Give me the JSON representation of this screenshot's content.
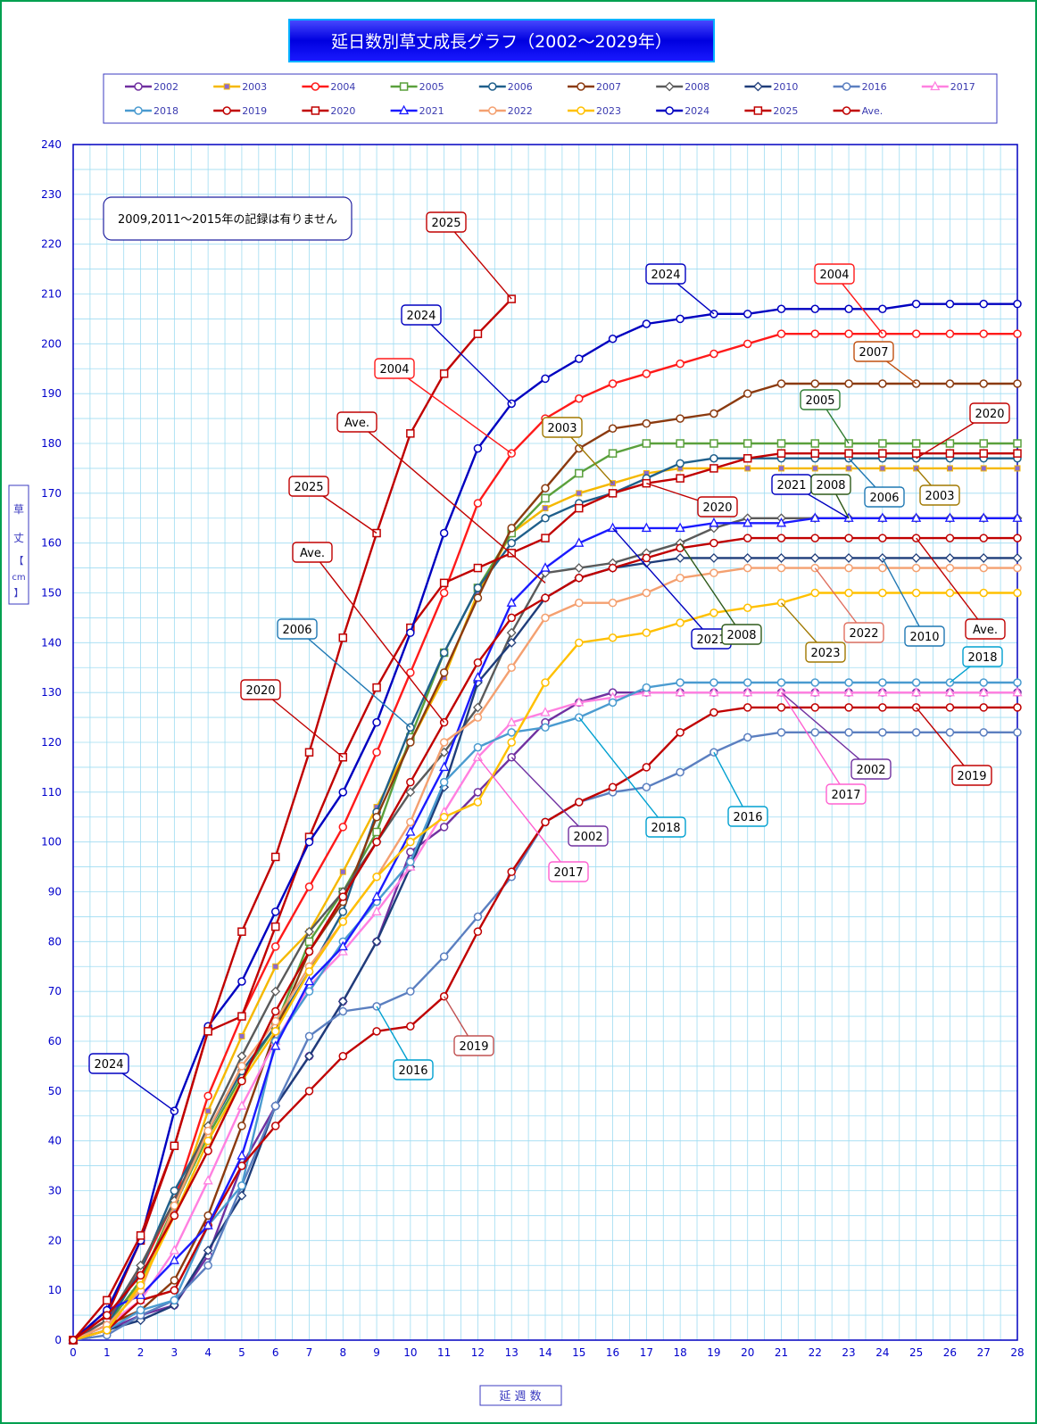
{
  "chart_data": {
    "type": "line",
    "title": "延日数別草丈成長グラフ（2002～2029年）",
    "note": "2009,2011～2015年の記録は有りません",
    "xlabel": "延 週 数",
    "ylabel": "草 丈 【cm】",
    "xlim": [
      0,
      28
    ],
    "ylim": [
      0,
      240
    ],
    "x_ticks": [
      0,
      1,
      2,
      3,
      4,
      5,
      6,
      7,
      8,
      9,
      10,
      11,
      12,
      13,
      14,
      15,
      16,
      17,
      18,
      19,
      20,
      21,
      22,
      23,
      24,
      25,
      26,
      27,
      28
    ],
    "y_ticks": [
      0,
      10,
      20,
      30,
      40,
      50,
      60,
      70,
      80,
      90,
      100,
      110,
      120,
      130,
      140,
      150,
      160,
      170,
      180,
      190,
      200,
      210,
      220,
      230,
      240
    ],
    "grid": true,
    "legend_position": "top",
    "series": [
      {
        "name": "2002",
        "color": "#7030a0",
        "marker": "circle-open",
        "values": [
          0,
          2,
          5,
          7,
          17,
          35,
          47,
          57,
          68,
          80,
          98,
          103,
          110,
          117,
          124,
          128,
          130,
          130,
          130,
          130,
          130,
          130,
          130,
          130,
          130,
          130,
          130,
          130,
          130
        ]
      },
      {
        "name": "2003",
        "color": "#f5b800",
        "marker": "square-filled",
        "values": [
          0,
          4,
          11,
          26,
          46,
          61,
          75,
          82,
          94,
          107,
          120,
          133,
          150,
          162,
          167,
          170,
          172,
          174,
          175,
          175,
          175,
          175,
          175,
          175,
          175,
          175,
          175,
          175,
          175
        ]
      },
      {
        "name": "2004",
        "color": "#ff1a1a",
        "marker": "circle-open",
        "values": [
          0,
          4,
          14,
          28,
          49,
          65,
          79,
          91,
          103,
          118,
          134,
          150,
          168,
          178,
          185,
          189,
          192,
          194,
          196,
          198,
          200,
          202,
          202,
          202,
          202,
          202,
          202,
          202,
          202
        ]
      },
      {
        "name": "2005",
        "color": "#5aa03c",
        "marker": "square-open",
        "values": [
          0,
          3,
          12,
          27,
          41,
          53,
          63,
          80,
          90,
          102,
          121,
          138,
          151,
          162,
          169,
          174,
          178,
          180,
          180,
          180,
          180,
          180,
          180,
          180,
          180,
          180,
          180,
          180,
          180
        ]
      },
      {
        "name": "2006",
        "color": "#1f5f8b",
        "marker": "circle-open",
        "values": [
          0,
          3,
          14,
          30,
          42,
          54,
          63,
          74,
          86,
          106,
          123,
          138,
          151,
          160,
          165,
          168,
          170,
          173,
          176,
          177,
          177,
          177,
          177,
          177,
          177,
          177,
          177,
          177,
          177
        ]
      },
      {
        "name": "2007",
        "color": "#8b3a0f",
        "marker": "circle-open",
        "values": [
          0,
          3,
          6,
          12,
          25,
          43,
          62,
          78,
          88,
          105,
          120,
          134,
          149,
          163,
          171,
          179,
          183,
          184,
          185,
          186,
          190,
          192,
          192,
          192,
          192,
          192,
          192,
          192,
          192
        ]
      },
      {
        "name": "2008",
        "color": "#5a5a5a",
        "marker": "diamond-open",
        "values": [
          0,
          4,
          15,
          28,
          43,
          57,
          70,
          82,
          90,
          100,
          110,
          118,
          127,
          142,
          154,
          155,
          156,
          158,
          160,
          163,
          165,
          165,
          165,
          165,
          165,
          165,
          165,
          165,
          165
        ]
      },
      {
        "name": "2010",
        "color": "#1f3d7a",
        "marker": "diamond-open",
        "values": [
          0,
          2,
          4,
          7,
          18,
          29,
          47,
          57,
          68,
          80,
          95,
          111,
          132,
          140,
          149,
          153,
          155,
          156,
          157,
          157,
          157,
          157,
          157,
          157,
          157,
          157,
          157,
          157,
          157
        ]
      },
      {
        "name": "2016",
        "color": "#5b7fc0",
        "marker": "circle-open",
        "values": [
          0,
          1,
          5,
          8,
          15,
          31,
          47,
          61,
          66,
          67,
          70,
          77,
          85,
          93,
          104,
          108,
          110,
          111,
          114,
          118,
          121,
          122,
          122,
          122,
          122,
          122,
          122,
          122,
          122
        ]
      },
      {
        "name": "2017",
        "color": "#ff80e0",
        "marker": "triangle-open",
        "values": [
          0,
          3,
          8,
          18,
          32,
          47,
          60,
          71,
          78,
          86,
          95,
          106,
          117,
          124,
          126,
          128,
          129,
          130,
          130,
          130,
          130,
          130,
          130,
          130,
          130,
          130,
          130,
          130,
          130
        ]
      },
      {
        "name": "2018",
        "color": "#4a9bd0",
        "marker": "circle-open",
        "values": [
          0,
          2,
          6,
          8,
          23,
          31,
          60,
          70,
          80,
          88,
          96,
          112,
          119,
          122,
          123,
          125,
          128,
          131,
          132,
          132,
          132,
          132,
          132,
          132,
          132,
          132,
          132,
          132,
          132
        ]
      },
      {
        "name": "2019",
        "color": "#c00000",
        "marker": "circle-open",
        "values": [
          0,
          2,
          8,
          10,
          23,
          35,
          43,
          50,
          57,
          62,
          63,
          69,
          82,
          94,
          104,
          108,
          111,
          115,
          122,
          126,
          127,
          127,
          127,
          127,
          127,
          127,
          127,
          127,
          127
        ]
      },
      {
        "name": "2020",
        "color": "#c00000",
        "marker": "square-open",
        "values": [
          0,
          5,
          20,
          39,
          62,
          65,
          83,
          101,
          117,
          131,
          143,
          152,
          155,
          158,
          161,
          167,
          170,
          172,
          173,
          175,
          177,
          178,
          178,
          178,
          178,
          178,
          178,
          178,
          178
        ]
      },
      {
        "name": "2021",
        "color": "#1a1aff",
        "marker": "triangle-open",
        "values": [
          0,
          6,
          9,
          16,
          23,
          37,
          59,
          72,
          79,
          89,
          102,
          115,
          133,
          148,
          155,
          160,
          163,
          163,
          163,
          164,
          164,
          164,
          165,
          165,
          165,
          165,
          165,
          165,
          165
        ]
      },
      {
        "name": "2022",
        "color": "#f4a070",
        "marker": "circle-open",
        "values": [
          0,
          3,
          10,
          27,
          42,
          55,
          64,
          75,
          84,
          93,
          104,
          120,
          125,
          135,
          145,
          148,
          148,
          150,
          153,
          154,
          155,
          155,
          155,
          155,
          155,
          155,
          155,
          155,
          155
        ]
      },
      {
        "name": "2023",
        "color": "#ffc000",
        "marker": "circle-open",
        "values": [
          0,
          2,
          11,
          25,
          40,
          52,
          62,
          74,
          84,
          93,
          100,
          105,
          108,
          120,
          132,
          140,
          141,
          142,
          144,
          146,
          147,
          148,
          150,
          150,
          150,
          150,
          150,
          150,
          150
        ]
      },
      {
        "name": "2024",
        "color": "#0000c0",
        "marker": "circle-open",
        "values": [
          0,
          6,
          20,
          46,
          63,
          72,
          86,
          100,
          110,
          124,
          142,
          162,
          179,
          188,
          193,
          197,
          201,
          204,
          205,
          206,
          206,
          207,
          207,
          207,
          207,
          208,
          208,
          208,
          208
        ]
      },
      {
        "name": "2025",
        "color": "#c00000",
        "marker": "square-open",
        "values": [
          0,
          8,
          21,
          39,
          62,
          82,
          97,
          118,
          141,
          162,
          182,
          194,
          202,
          209
        ]
      },
      {
        "name": "Ave.",
        "color": "#c00000",
        "marker": "circle-open",
        "values": [
          0,
          5,
          13,
          25,
          38,
          52,
          66,
          78,
          89,
          100,
          112,
          124,
          136,
          145,
          149,
          153,
          155,
          157,
          159,
          160,
          161,
          161,
          161,
          161,
          161,
          161,
          161,
          161,
          161
        ]
      }
    ],
    "annotations": [
      {
        "text": "2024",
        "color": "#0000c0",
        "x": 3,
        "y": 46
      },
      {
        "text": "2016",
        "color": "#00a0d0",
        "x": 9,
        "y": 67
      },
      {
        "text": "2019",
        "color": "#c05050",
        "x": 11,
        "y": 69
      },
      {
        "text": "2020",
        "color": "#c00000",
        "x": 8,
        "y": 117
      },
      {
        "text": "2006",
        "color": "#1f78b4",
        "x": 10,
        "y": 123
      },
      {
        "text": "Ave.",
        "color": "#c00000",
        "x": 11,
        "y": 124
      },
      {
        "text": "2025",
        "color": "#c00000",
        "x": 9,
        "y": 162
      },
      {
        "text": "Ave.",
        "color": "#c00000",
        "x": 14,
        "y": 152
      },
      {
        "text": "2004",
        "color": "#ff1a1a",
        "x": 13,
        "y": 178
      },
      {
        "text": "2024",
        "color": "#0000c0",
        "x": 13,
        "y": 188
      },
      {
        "text": "2025",
        "color": "#c00000",
        "x": 13,
        "y": 209
      },
      {
        "text": "2024",
        "color": "#0000c0",
        "x": 19,
        "y": 206
      },
      {
        "text": "2004",
        "color": "#ff1a1a",
        "x": 24,
        "y": 202
      },
      {
        "text": "2007",
        "color": "#c05010",
        "x": 25,
        "y": 192
      },
      {
        "text": "2005",
        "color": "#2e7d32",
        "x": 23,
        "y": 180
      },
      {
        "text": "2020",
        "color": "#c00000",
        "x": 25,
        "y": 177
      },
      {
        "text": "2003",
        "color": "#a07800",
        "x": 16,
        "y": 172
      },
      {
        "text": "2020",
        "color": "#c00000",
        "x": 17,
        "y": 172
      },
      {
        "text": "2021",
        "color": "#0000c0",
        "x": 23,
        "y": 165
      },
      {
        "text": "2008",
        "color": "#2e5a1a",
        "x": 23,
        "y": 165
      },
      {
        "text": "2006",
        "color": "#1f78b4",
        "x": 23,
        "y": 177
      },
      {
        "text": "2003",
        "color": "#a07800",
        "x": 25,
        "y": 175
      },
      {
        "text": "2021",
        "color": "#0000c0",
        "x": 16,
        "y": 163
      },
      {
        "text": "2008",
        "color": "#2e5a1a",
        "x": 18,
        "y": 160
      },
      {
        "text": "2022",
        "color": "#e07060",
        "x": 22,
        "y": 155
      },
      {
        "text": "2010",
        "color": "#1f78b4",
        "x": 24,
        "y": 157
      },
      {
        "text": "Ave.",
        "color": "#c00000",
        "x": 25,
        "y": 161
      },
      {
        "text": "2023",
        "color": "#a07800",
        "x": 21,
        "y": 148
      },
      {
        "text": "2018",
        "color": "#00a0d0",
        "x": 26,
        "y": 132
      },
      {
        "text": "2002",
        "color": "#7030a0",
        "x": 13,
        "y": 117
      },
      {
        "text": "2017",
        "color": "#ff60d0",
        "x": 12,
        "y": 117
      },
      {
        "text": "2018",
        "color": "#00a0d0",
        "x": 15,
        "y": 125
      },
      {
        "text": "2016",
        "color": "#00a0d0",
        "x": 19,
        "y": 118
      },
      {
        "text": "2002",
        "color": "#7030a0",
        "x": 21,
        "y": 130
      },
      {
        "text": "2017",
        "color": "#ff60d0",
        "x": 21,
        "y": 130
      },
      {
        "text": "2019",
        "color": "#c00000",
        "x": 25,
        "y": 127
      }
    ]
  }
}
